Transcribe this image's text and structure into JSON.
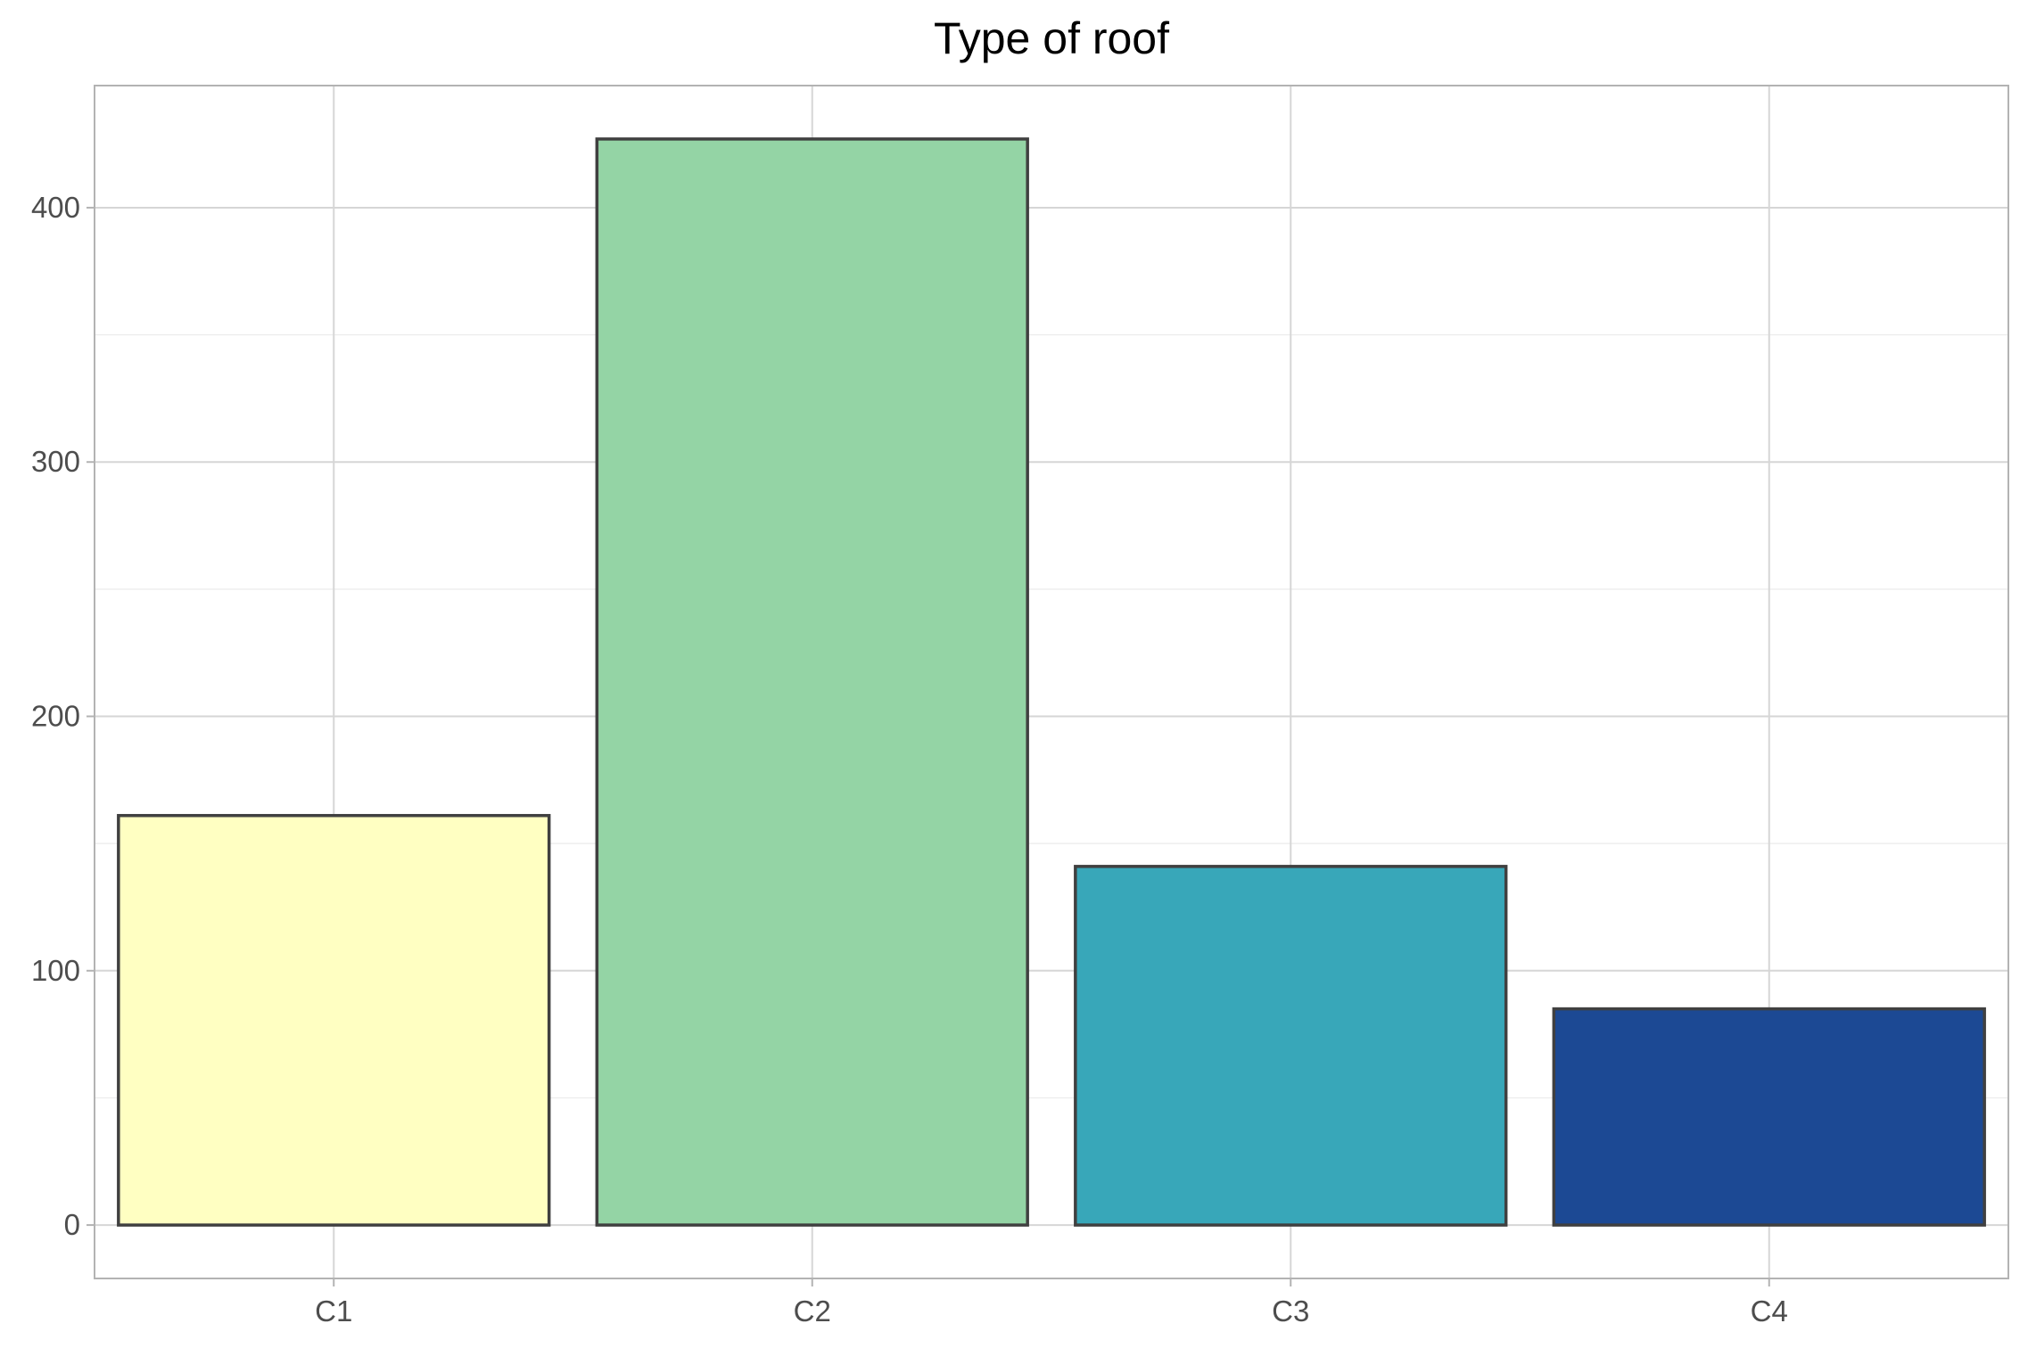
{
  "chart_data": {
    "type": "bar",
    "title": "Type of roof",
    "xlabel": "",
    "ylabel": "",
    "categories": [
      "C1",
      "C2",
      "C3",
      "C4"
    ],
    "values": [
      161,
      427,
      141,
      85
    ],
    "ylim": [
      -21,
      448
    ],
    "yticks": [
      0,
      100,
      200,
      300,
      400
    ],
    "yminor": [
      50,
      150,
      250,
      350
    ],
    "grid": true,
    "legend": "none",
    "colors": {
      "bars": [
        "#ffffc2",
        "#94d4a5",
        "#38a7b9",
        "#1c4994"
      ],
      "bar_outline": "#404040",
      "grid_major": "#d6d6d6",
      "grid_minor": "#ebebeb",
      "panel_border": "#b3b3b3"
    }
  }
}
